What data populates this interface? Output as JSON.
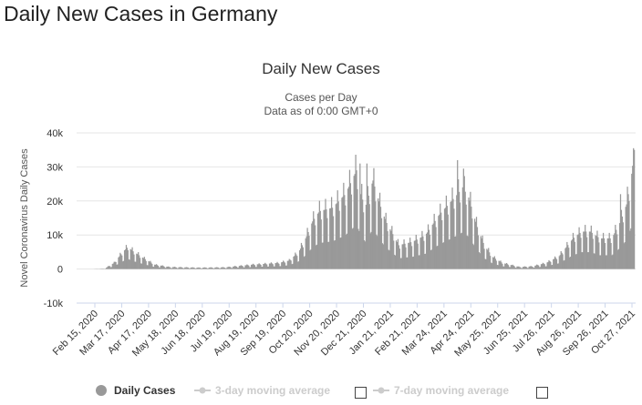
{
  "page": {
    "heading": "Daily New Cases in Germany"
  },
  "chart_data": {
    "type": "bar",
    "title": "Daily New Cases",
    "subtitle_lines": [
      "Cases per Day",
      "Data as of 0:00 GMT+0"
    ],
    "xlabel": "",
    "ylabel": "Novel Coronavirus Daily Cases",
    "ylim": [
      -10000,
      40000
    ],
    "yticks": [
      -10000,
      0,
      10000,
      20000,
      30000,
      40000
    ],
    "ytick_labels": [
      "-10k",
      "0",
      "10k",
      "20k",
      "30k",
      "40k"
    ],
    "x_range": [
      "2020-02-15",
      "2021-11-05"
    ],
    "x_tick_labels": [
      "Feb 15, 2020",
      "Mar 17, 2020",
      "Apr 17, 2020",
      "May 18, 2020",
      "Jun 18, 2020",
      "Jul 19, 2020",
      "Aug 19, 2020",
      "Sep 19, 2020",
      "Oct 20, 2020",
      "Nov 20, 2020",
      "Dec 21, 2020",
      "Jan 21, 2021",
      "Feb 21, 2021",
      "Mar 24, 2021",
      "Apr 24, 2021",
      "May 25, 2021",
      "Jun 25, 2021",
      "Jul 26, 2021",
      "Aug 26, 2021",
      "Sep 26, 2021",
      "Oct 27, 2021"
    ],
    "grid": true,
    "bar_color": "#999999",
    "series": [
      {
        "name": "Daily Cases",
        "anchor_dates": [
          "2020-02-15",
          "2020-03-01",
          "2020-03-12",
          "2020-03-22",
          "2020-03-28",
          "2020-04-03",
          "2020-04-15",
          "2020-04-28",
          "2020-05-15",
          "2020-06-18",
          "2020-07-19",
          "2020-08-19",
          "2020-09-19",
          "2020-10-01",
          "2020-10-12",
          "2020-10-20",
          "2020-10-28",
          "2020-11-05",
          "2020-11-20",
          "2020-12-05",
          "2020-12-18",
          "2020-12-23",
          "2020-12-28",
          "2021-01-06",
          "2021-01-14",
          "2021-01-21",
          "2021-02-05",
          "2021-02-21",
          "2021-03-08",
          "2021-03-24",
          "2021-04-14",
          "2021-04-20",
          "2021-04-27",
          "2021-05-06",
          "2021-05-15",
          "2021-05-25",
          "2021-06-05",
          "2021-06-25",
          "2021-07-10",
          "2021-07-26",
          "2021-08-10",
          "2021-08-26",
          "2021-09-05",
          "2021-09-15",
          "2021-09-26",
          "2021-10-10",
          "2021-10-20",
          "2021-10-27",
          "2021-11-02",
          "2021-11-05"
        ],
        "anchor_values": [
          0,
          100,
          1800,
          5000,
          6500,
          5200,
          3200,
          1300,
          600,
          400,
          500,
          1300,
          1800,
          2500,
          5000,
          9000,
          14000,
          17000,
          18000,
          22000,
          29000,
          22000,
          18000,
          26000,
          19000,
          14000,
          7000,
          8000,
          10000,
          16000,
          22000,
          24000,
          21000,
          13000,
          7000,
          3500,
          1800,
          600,
          800,
          1800,
          3800,
          9000,
          11000,
          11000,
          9000,
          9000,
          14000,
          19000,
          28000,
          35000
        ],
        "peaks": [
          {
            "date": "2020-12-22",
            "value": 31000
          },
          {
            "date": "2020-12-30",
            "value": 31000
          },
          {
            "date": "2021-04-14",
            "value": 32000
          },
          {
            "date": "2021-04-21",
            "value": 29500
          },
          {
            "date": "2021-10-20",
            "value": 22000
          },
          {
            "date": "2021-11-04",
            "value": 35500
          }
        ],
        "weekly_dip_factor": 0.45,
        "start_date": "2020-02-15",
        "end_date": "2021-11-05"
      }
    ],
    "legend": {
      "placement": "bottom",
      "items": [
        {
          "label": "Daily Cases",
          "color": "#999999",
          "active": true,
          "symbol": "circle"
        },
        {
          "label": "3-day moving average",
          "color": "#cccccc",
          "active": false,
          "symbol": "line-dot",
          "checkbox": true
        },
        {
          "label": "7-day moving average",
          "color": "#cccccc",
          "active": false,
          "symbol": "line-dot",
          "checkbox": true
        }
      ]
    }
  }
}
